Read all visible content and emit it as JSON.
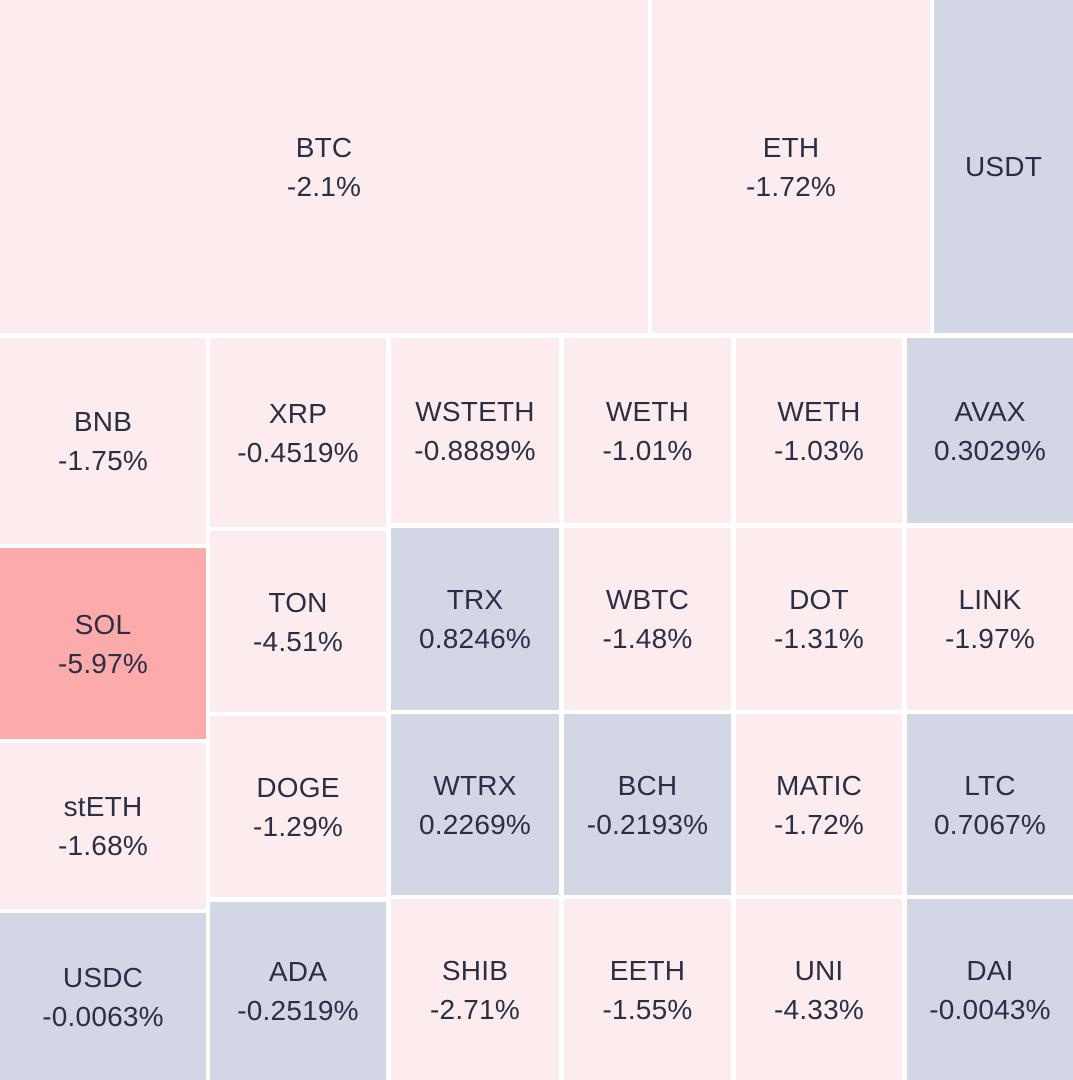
{
  "chart_data": {
    "type": "treemap",
    "title": "",
    "colors": {
      "negative": "#fdeced",
      "positive": "#d3d6e5",
      "strong_negative": "#fdaaab",
      "text": "#2a2f45"
    },
    "items": [
      {
        "label": "BTC",
        "change": "-2.1%"
      },
      {
        "label": "ETH",
        "change": "-1.72%"
      },
      {
        "label": "USDT",
        "change": ""
      },
      {
        "label": "BNB",
        "change": "-1.75%"
      },
      {
        "label": "XRP",
        "change": "-0.4519%"
      },
      {
        "label": "WSTETH",
        "change": "-0.8889%"
      },
      {
        "label": "WETH",
        "change": "-1.01%"
      },
      {
        "label": "WETH",
        "change": "-1.03%"
      },
      {
        "label": "AVAX",
        "change": "0.3029%"
      },
      {
        "label": "SOL",
        "change": "-5.97%"
      },
      {
        "label": "TON",
        "change": "-4.51%"
      },
      {
        "label": "TRX",
        "change": "0.8246%"
      },
      {
        "label": "WBTC",
        "change": "-1.48%"
      },
      {
        "label": "DOT",
        "change": "-1.31%"
      },
      {
        "label": "LINK",
        "change": "-1.97%"
      },
      {
        "label": "stETH",
        "change": "-1.68%"
      },
      {
        "label": "DOGE",
        "change": "-1.29%"
      },
      {
        "label": "WTRX",
        "change": "0.2269%"
      },
      {
        "label": "BCH",
        "change": "-0.2193%"
      },
      {
        "label": "MATIC",
        "change": "-1.72%"
      },
      {
        "label": "LTC",
        "change": "0.7067%"
      },
      {
        "label": "USDC",
        "change": "-0.0063%"
      },
      {
        "label": "ADA",
        "change": "-0.2519%"
      },
      {
        "label": "SHIB",
        "change": "-2.71%"
      },
      {
        "label": "EETH",
        "change": "-1.55%"
      },
      {
        "label": "UNI",
        "change": "-4.33%"
      },
      {
        "label": "DAI",
        "change": "-0.0043%"
      }
    ]
  }
}
